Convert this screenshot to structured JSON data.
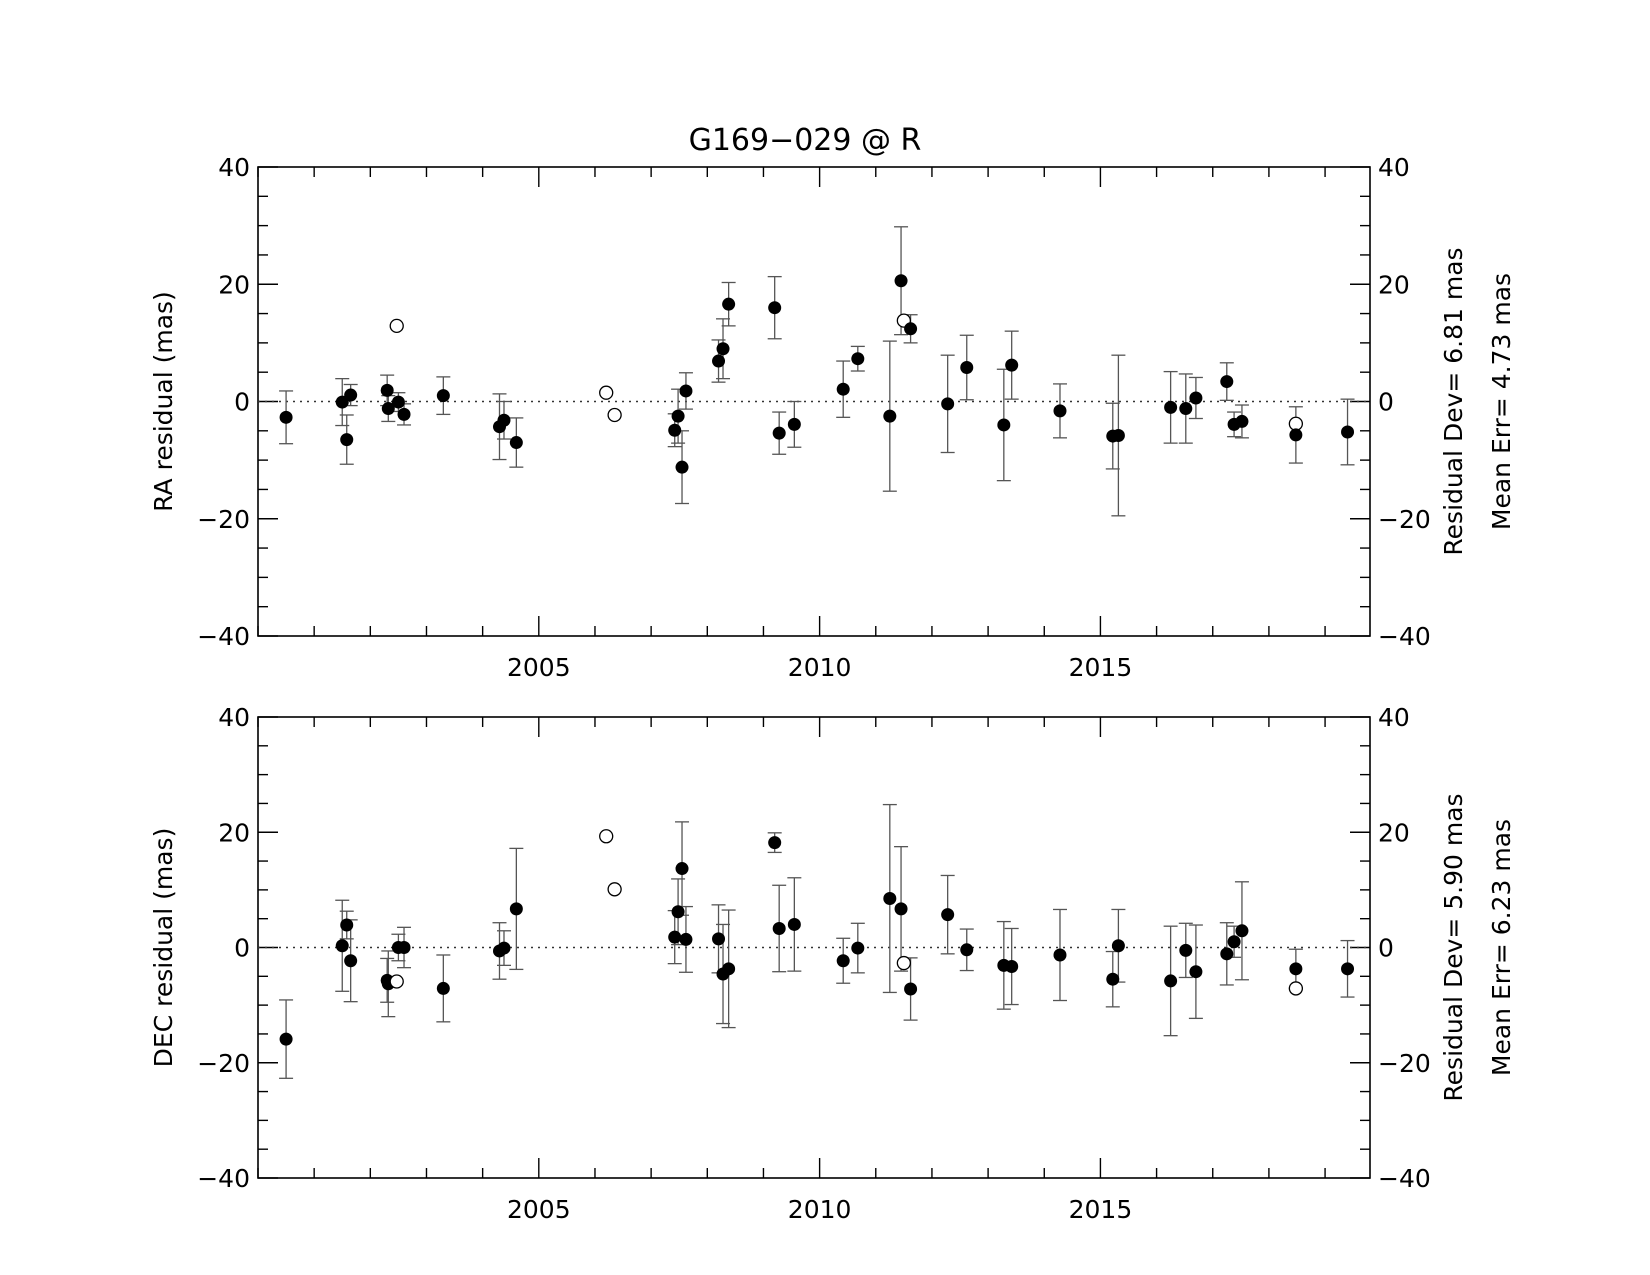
{
  "chart_data": [
    {
      "type": "scatter",
      "title": "G169−029 @ R",
      "xlabel": "",
      "ylabel": "RA residual (mas)",
      "xlim": [
        2000.0,
        2019.8
      ],
      "ylim": [
        -40,
        40
      ],
      "x_ticks": [
        2005,
        2010,
        2015
      ],
      "x_tick_labels": [
        "2005",
        "2010",
        "2015"
      ],
      "y_ticks": [
        -40,
        -20,
        0,
        20,
        40
      ],
      "y_tick_labels": [
        "−40",
        "−20",
        "0",
        "20",
        "40"
      ],
      "reference_line": 0,
      "stats": {
        "residual_dev": "Residual Dev=   6.81  mas",
        "mean_err": "Mean Err= 4.73 mas"
      },
      "points": [
        {
          "x": 2000.5,
          "y": -2.7,
          "err": 4.5,
          "used": true
        },
        {
          "x": 2001.5,
          "y": -0.1,
          "err": 4.0,
          "used": true
        },
        {
          "x": 2001.58,
          "y": -6.5,
          "err": 4.2,
          "used": true
        },
        {
          "x": 2001.65,
          "y": 1.1,
          "err": 1.8,
          "used": true
        },
        {
          "x": 2002.3,
          "y": 1.9,
          "err": 2.6,
          "used": true
        },
        {
          "x": 2002.32,
          "y": -1.2,
          "err": 2.2,
          "used": true
        },
        {
          "x": 2002.47,
          "y": 12.9,
          "err": 0,
          "used": false
        },
        {
          "x": 2002.5,
          "y": -0.1,
          "err": 1.6,
          "used": true
        },
        {
          "x": 2002.6,
          "y": -2.2,
          "err": 1.8,
          "used": true
        },
        {
          "x": 2003.3,
          "y": 1.0,
          "err": 3.2,
          "used": true
        },
        {
          "x": 2004.3,
          "y": -4.3,
          "err": 5.6,
          "used": true
        },
        {
          "x": 2004.38,
          "y": -3.2,
          "err": 3.2,
          "used": true
        },
        {
          "x": 2004.6,
          "y": -7.0,
          "err": 4.2,
          "used": true
        },
        {
          "x": 2006.2,
          "y": 1.5,
          "err": 0,
          "used": false
        },
        {
          "x": 2006.35,
          "y": -2.3,
          "err": 0,
          "used": false
        },
        {
          "x": 2007.42,
          "y": -4.9,
          "err": 2.8,
          "used": true
        },
        {
          "x": 2007.48,
          "y": -2.5,
          "err": 4.6,
          "used": true
        },
        {
          "x": 2007.55,
          "y": -11.2,
          "err": 6.2,
          "used": true
        },
        {
          "x": 2007.62,
          "y": 1.8,
          "err": 3.1,
          "used": true
        },
        {
          "x": 2008.2,
          "y": 6.9,
          "err": 3.6,
          "used": true
        },
        {
          "x": 2008.28,
          "y": 9.0,
          "err": 5.1,
          "used": true
        },
        {
          "x": 2008.38,
          "y": 16.6,
          "err": 3.7,
          "used": true
        },
        {
          "x": 2009.2,
          "y": 16.0,
          "err": 5.3,
          "used": true
        },
        {
          "x": 2009.28,
          "y": -5.4,
          "err": 3.6,
          "used": true
        },
        {
          "x": 2009.55,
          "y": -3.9,
          "err": 3.9,
          "used": true
        },
        {
          "x": 2010.42,
          "y": 2.1,
          "err": 4.8,
          "used": true
        },
        {
          "x": 2010.68,
          "y": 7.3,
          "err": 2.1,
          "used": true
        },
        {
          "x": 2011.25,
          "y": -2.5,
          "err": 12.8,
          "used": true
        },
        {
          "x": 2011.45,
          "y": 20.6,
          "err": 9.2,
          "used": true
        },
        {
          "x": 2011.5,
          "y": 13.8,
          "err": 0,
          "used": false
        },
        {
          "x": 2011.62,
          "y": 12.4,
          "err": 2.4,
          "used": true
        },
        {
          "x": 2012.28,
          "y": -0.4,
          "err": 8.3,
          "used": true
        },
        {
          "x": 2012.62,
          "y": 5.8,
          "err": 5.5,
          "used": true
        },
        {
          "x": 2013.28,
          "y": -4.0,
          "err": 9.5,
          "used": true
        },
        {
          "x": 2013.42,
          "y": 6.2,
          "err": 5.8,
          "used": true
        },
        {
          "x": 2014.28,
          "y": -1.6,
          "err": 4.6,
          "used": true
        },
        {
          "x": 2015.22,
          "y": -5.9,
          "err": 5.6,
          "used": true
        },
        {
          "x": 2015.32,
          "y": -5.8,
          "err": 13.7,
          "used": true
        },
        {
          "x": 2016.25,
          "y": -1.0,
          "err": 6.1,
          "used": true
        },
        {
          "x": 2016.52,
          "y": -1.2,
          "err": 5.9,
          "used": true
        },
        {
          "x": 2016.7,
          "y": 0.6,
          "err": 3.5,
          "used": true
        },
        {
          "x": 2017.25,
          "y": 3.4,
          "err": 3.2,
          "used": true
        },
        {
          "x": 2017.38,
          "y": -3.9,
          "err": 2.1,
          "used": true
        },
        {
          "x": 2017.52,
          "y": -3.4,
          "err": 2.8,
          "used": true
        },
        {
          "x": 2018.48,
          "y": -3.8,
          "err": 0,
          "used": false
        },
        {
          "x": 2018.48,
          "y": -5.7,
          "err": 4.8,
          "used": true
        },
        {
          "x": 2019.4,
          "y": -5.2,
          "err": 5.6,
          "used": true
        }
      ]
    },
    {
      "type": "scatter",
      "title": "",
      "xlabel": "",
      "ylabel": "DEC residual (mas)",
      "xlim": [
        2000.0,
        2019.8
      ],
      "ylim": [
        -40,
        40
      ],
      "x_ticks": [
        2005,
        2010,
        2015
      ],
      "x_tick_labels": [
        "2005",
        "2010",
        "2015"
      ],
      "y_ticks": [
        -40,
        -20,
        0,
        20,
        40
      ],
      "y_tick_labels": [
        "−40",
        "−20",
        "0",
        "20",
        "40"
      ],
      "reference_line": 0,
      "stats": {
        "residual_dev": "Residual Dev=   5.90  mas",
        "mean_err": "Mean Err= 6.23 mas"
      },
      "points": [
        {
          "x": 2000.5,
          "y": -15.9,
          "err": 6.8,
          "used": true
        },
        {
          "x": 2001.5,
          "y": 0.3,
          "err": 7.9,
          "used": true
        },
        {
          "x": 2001.58,
          "y": 3.9,
          "err": 2.4,
          "used": true
        },
        {
          "x": 2001.65,
          "y": -2.3,
          "err": 7.1,
          "used": true
        },
        {
          "x": 2002.3,
          "y": -5.7,
          "err": 3.8,
          "used": true
        },
        {
          "x": 2002.32,
          "y": -6.3,
          "err": 5.7,
          "used": true
        },
        {
          "x": 2002.47,
          "y": -5.9,
          "err": 0,
          "used": false
        },
        {
          "x": 2002.5,
          "y": 0.0,
          "err": 2.3,
          "used": true
        },
        {
          "x": 2002.6,
          "y": 0.0,
          "err": 3.5,
          "used": true
        },
        {
          "x": 2003.3,
          "y": -7.1,
          "err": 5.8,
          "used": true
        },
        {
          "x": 2004.3,
          "y": -0.6,
          "err": 4.9,
          "used": true
        },
        {
          "x": 2004.38,
          "y": -0.1,
          "err": 3.0,
          "used": true
        },
        {
          "x": 2004.6,
          "y": 6.7,
          "err": 10.5,
          "used": true
        },
        {
          "x": 2006.2,
          "y": 19.3,
          "err": 0,
          "used": false
        },
        {
          "x": 2006.35,
          "y": 10.1,
          "err": 0,
          "used": false
        },
        {
          "x": 2007.42,
          "y": 1.8,
          "err": 4.6,
          "used": true
        },
        {
          "x": 2007.48,
          "y": 6.2,
          "err": 5.7,
          "used": true
        },
        {
          "x": 2007.55,
          "y": 13.7,
          "err": 8.1,
          "used": true
        },
        {
          "x": 2007.62,
          "y": 1.4,
          "err": 5.7,
          "used": true
        },
        {
          "x": 2008.2,
          "y": 1.5,
          "err": 5.9,
          "used": true
        },
        {
          "x": 2008.28,
          "y": -4.6,
          "err": 8.6,
          "used": true
        },
        {
          "x": 2008.38,
          "y": -3.7,
          "err": 10.2,
          "used": true
        },
        {
          "x": 2009.2,
          "y": 18.2,
          "err": 1.7,
          "used": true
        },
        {
          "x": 2009.28,
          "y": 3.3,
          "err": 7.5,
          "used": true
        },
        {
          "x": 2009.55,
          "y": 4.0,
          "err": 8.1,
          "used": true
        },
        {
          "x": 2010.42,
          "y": -2.3,
          "err": 3.9,
          "used": true
        },
        {
          "x": 2010.68,
          "y": -0.1,
          "err": 4.3,
          "used": true
        },
        {
          "x": 2011.25,
          "y": 8.5,
          "err": 16.3,
          "used": true
        },
        {
          "x": 2011.45,
          "y": 6.7,
          "err": 10.8,
          "used": true
        },
        {
          "x": 2011.5,
          "y": -2.7,
          "err": 0,
          "used": false
        },
        {
          "x": 2011.62,
          "y": -7.2,
          "err": 5.4,
          "used": true
        },
        {
          "x": 2012.28,
          "y": 5.7,
          "err": 6.8,
          "used": true
        },
        {
          "x": 2012.62,
          "y": -0.4,
          "err": 3.6,
          "used": true
        },
        {
          "x": 2013.28,
          "y": -3.1,
          "err": 7.6,
          "used": true
        },
        {
          "x": 2013.42,
          "y": -3.3,
          "err": 6.6,
          "used": true
        },
        {
          "x": 2014.28,
          "y": -1.3,
          "err": 7.9,
          "used": true
        },
        {
          "x": 2015.22,
          "y": -5.5,
          "err": 4.8,
          "used": true
        },
        {
          "x": 2015.32,
          "y": 0.3,
          "err": 6.3,
          "used": true
        },
        {
          "x": 2016.25,
          "y": -5.8,
          "err": 9.5,
          "used": true
        },
        {
          "x": 2016.52,
          "y": -0.5,
          "err": 4.7,
          "used": true
        },
        {
          "x": 2016.7,
          "y": -4.2,
          "err": 8.1,
          "used": true
        },
        {
          "x": 2017.25,
          "y": -1.1,
          "err": 5.4,
          "used": true
        },
        {
          "x": 2017.38,
          "y": 1.0,
          "err": 2.7,
          "used": true
        },
        {
          "x": 2017.52,
          "y": 2.9,
          "err": 8.5,
          "used": true
        },
        {
          "x": 2018.48,
          "y": -7.1,
          "err": 0,
          "used": false
        },
        {
          "x": 2018.48,
          "y": -3.7,
          "err": 3.4,
          "used": true
        },
        {
          "x": 2019.4,
          "y": -3.7,
          "err": 4.9,
          "used": true
        }
      ]
    }
  ]
}
